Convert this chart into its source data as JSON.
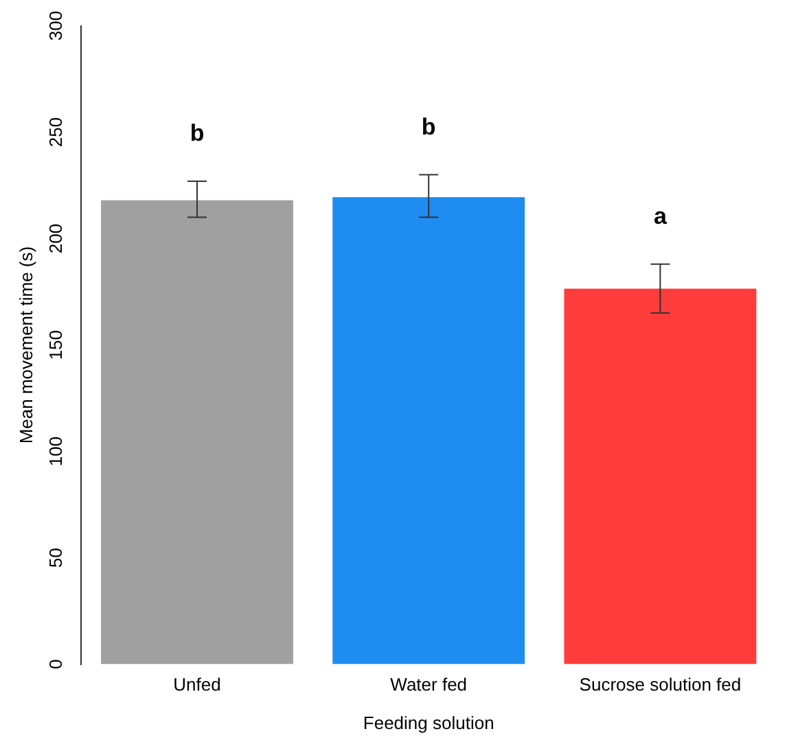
{
  "chart_data": {
    "type": "bar",
    "xlabel": "Feeding solution",
    "ylabel": "Mean movement time (s)",
    "categories": [
      "Unfed",
      "Water fed",
      "Sucrose solution fed"
    ],
    "values": [
      218,
      219.5,
      176.5
    ],
    "colors": [
      "#a0a0a0",
      "#1e8cf0",
      "#ff3c3c"
    ],
    "errors": [
      [
        210,
        227
      ],
      [
        210,
        230
      ],
      [
        165,
        188
      ]
    ],
    "ylim": [
      0,
      300
    ],
    "yticks": [
      0,
      50,
      100,
      150,
      200,
      250,
      300
    ],
    "grid": false,
    "legend": false,
    "annotations": [
      "b",
      "b",
      "a"
    ]
  }
}
